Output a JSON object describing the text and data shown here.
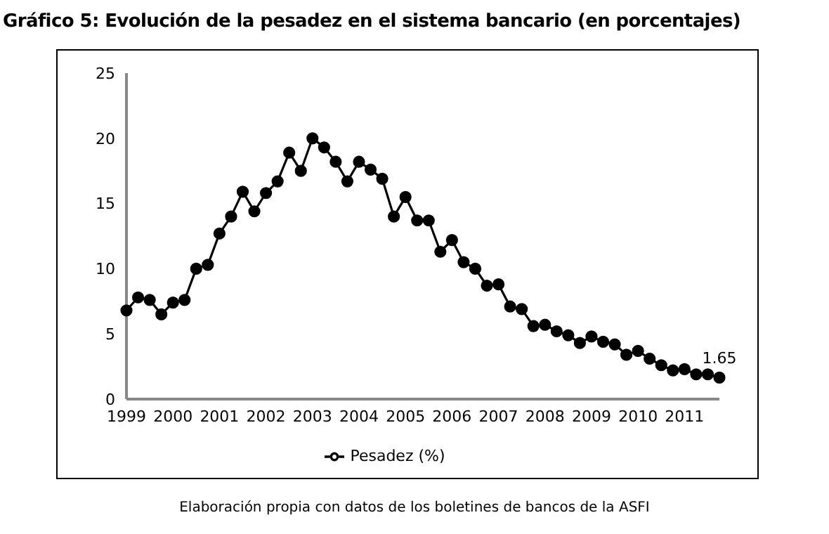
{
  "chart_data": {
    "type": "line",
    "title": "Gráfico 5: Evolución de la pesadez en el sistema bancario (en porcentajes)",
    "annotations": [
      "Elaboración propia con datos de los boletines de bancos de la ASFI"
    ],
    "categories": [
      "1999",
      null,
      null,
      null,
      "2000",
      null,
      null,
      null,
      "2001",
      null,
      null,
      null,
      "2002",
      null,
      null,
      null,
      "2003",
      null,
      null,
      null,
      "2004",
      null,
      null,
      null,
      "2005",
      null,
      null,
      null,
      "2006",
      null,
      null,
      null,
      "2007",
      null,
      null,
      null,
      "2008",
      null,
      null,
      null,
      "2009",
      null,
      null,
      null,
      "2010",
      null,
      null,
      null,
      "2011",
      null,
      null,
      null
    ],
    "series": [
      {
        "name": "Pesadez (%)",
        "color": "#000000",
        "values": [
          6.8,
          7.8,
          7.6,
          6.5,
          7.4,
          7.6,
          10.0,
          10.3,
          12.7,
          14.0,
          15.9,
          14.4,
          15.8,
          16.7,
          18.9,
          17.5,
          20.0,
          19.3,
          18.2,
          16.7,
          18.2,
          17.6,
          16.9,
          14.0,
          15.5,
          13.7,
          13.7,
          11.3,
          12.2,
          10.5,
          10.0,
          8.7,
          8.8,
          7.1,
          6.9,
          5.6,
          5.7,
          5.2,
          4.9,
          4.3,
          4.8,
          4.4,
          4.2,
          3.4,
          3.7,
          3.1,
          2.6,
          2.2,
          2.3,
          1.9,
          1.9,
          1.65
        ],
        "value_labels": [
          null,
          null,
          null,
          null,
          null,
          null,
          null,
          null,
          null,
          null,
          null,
          null,
          null,
          null,
          null,
          null,
          null,
          null,
          null,
          null,
          null,
          null,
          null,
          null,
          null,
          null,
          null,
          null,
          null,
          null,
          null,
          null,
          null,
          null,
          null,
          null,
          null,
          null,
          null,
          null,
          null,
          null,
          null,
          null,
          null,
          null,
          null,
          null,
          null,
          null,
          null,
          "1.65"
        ]
      }
    ],
    "ylim": [
      0,
      25
    ],
    "yticks": [
      0,
      5,
      10,
      15,
      20,
      25
    ],
    "grid": false,
    "legend": "bottom",
    "marker": "circle",
    "line_style": "solid"
  }
}
